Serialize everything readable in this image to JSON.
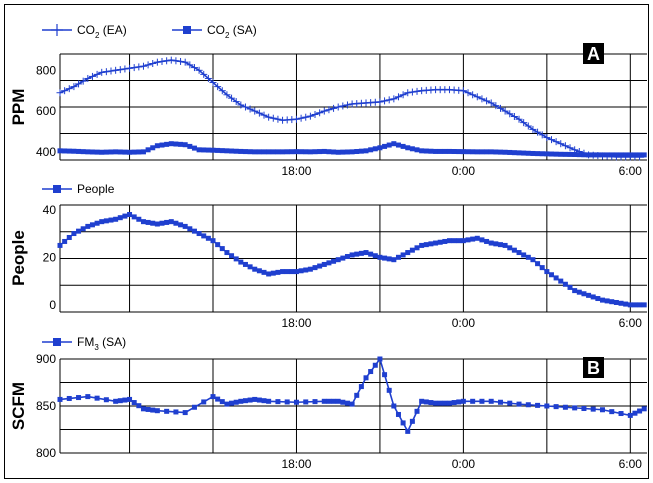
{
  "x_tick_labels": [
    "18:00",
    "0:00",
    "6:00"
  ],
  "chart_data": [
    {
      "type": "line",
      "panel_label": "A",
      "ylabel": "PPM",
      "ylim": [
        360,
        880
      ],
      "yticks": [
        400,
        600,
        800
      ],
      "x_unit": "hours",
      "xlim": [
        9.5,
        30.6
      ],
      "xticks": [
        18,
        24,
        30
      ],
      "series": [
        {
          "name": "CO2 (EA)",
          "legend_main": "CO",
          "legend_sub": "2",
          "legend_suffix": "(EA)",
          "color": "#1f3fcf",
          "marker": "plus",
          "x": [
            9.5,
            10,
            10.5,
            11,
            11.5,
            12,
            12.5,
            13,
            13.5,
            14,
            14.5,
            15,
            15.5,
            16,
            16.5,
            17,
            17.5,
            18,
            18.5,
            19,
            19.5,
            20,
            20.5,
            21,
            21.5,
            22,
            22.5,
            23,
            23.5,
            24,
            24.5,
            25,
            25.5,
            26,
            26.5,
            27,
            27.5,
            28,
            28.5,
            29,
            29.5,
            30,
            30.5
          ],
          "values": [
            690,
            720,
            760,
            790,
            800,
            810,
            820,
            840,
            850,
            840,
            800,
            740,
            680,
            630,
            600,
            570,
            555,
            560,
            575,
            600,
            620,
            635,
            640,
            645,
            660,
            690,
            700,
            705,
            705,
            700,
            670,
            640,
            600,
            560,
            510,
            470,
            440,
            410,
            385,
            380,
            375,
            375,
            375
          ]
        },
        {
          "name": "CO2 (SA)",
          "legend_main": "CO",
          "legend_sub": "2",
          "legend_suffix": "(SA)",
          "color": "#1f3fcf",
          "marker": "square",
          "x": [
            9.5,
            10,
            10.5,
            11,
            11.5,
            12,
            12.5,
            13,
            13.5,
            14,
            14.5,
            15,
            15.5,
            16,
            16.5,
            17,
            17.5,
            18,
            18.5,
            19,
            19.5,
            20,
            20.5,
            21,
            21.5,
            22,
            22.5,
            23,
            23.5,
            24,
            24.5,
            25,
            25.5,
            26,
            26.5,
            27,
            27.5,
            28,
            28.5,
            29,
            29.5,
            30,
            30.5
          ],
          "values": [
            405,
            403,
            400,
            398,
            400,
            398,
            400,
            430,
            440,
            435,
            410,
            408,
            405,
            402,
            400,
            400,
            400,
            401,
            400,
            402,
            398,
            400,
            405,
            420,
            440,
            420,
            405,
            402,
            402,
            401,
            400,
            400,
            398,
            395,
            392,
            390,
            388,
            387,
            385,
            385,
            385,
            385,
            385
          ]
        }
      ]
    },
    {
      "type": "line",
      "ylabel": "People",
      "ylim": [
        -3,
        42
      ],
      "yticks": [
        0,
        20,
        40
      ],
      "x_unit": "hours",
      "xlim": [
        9.5,
        30.6
      ],
      "xticks": [
        18,
        24,
        30
      ],
      "series": [
        {
          "name": "People",
          "legend_main": "People",
          "legend_sub": "",
          "legend_suffix": "",
          "color": "#1f3fcf",
          "marker": "square",
          "x": [
            9.5,
            10,
            10.5,
            11,
            11.5,
            12,
            12.5,
            13,
            13.5,
            14,
            14.5,
            15,
            15.5,
            16,
            16.5,
            17,
            17.5,
            18,
            18.5,
            19,
            19.5,
            20,
            20.5,
            21,
            21.5,
            22,
            22.5,
            23,
            23.5,
            24,
            24.5,
            25,
            25.5,
            26,
            26.5,
            27,
            27.5,
            28,
            28.5,
            29,
            29.5,
            30,
            30.5
          ],
          "values": [
            25,
            30,
            33,
            35,
            36,
            38,
            35,
            34,
            35,
            33,
            30,
            27,
            22,
            18,
            15,
            13,
            14,
            14,
            15,
            17,
            19,
            21,
            22,
            20,
            19,
            22,
            25,
            26,
            27,
            27,
            28,
            26,
            25,
            22,
            19,
            14,
            10,
            6,
            4,
            2,
            1,
            0,
            0
          ]
        }
      ]
    },
    {
      "type": "line",
      "panel_label": "B",
      "ylabel": "SCFM",
      "ylim": [
        800,
        900
      ],
      "yticks": [
        800,
        850,
        900
      ],
      "x_unit": "hours",
      "xlim": [
        9.5,
        30.6
      ],
      "xticks": [
        18,
        24,
        30
      ],
      "series": [
        {
          "name": "FM3 (SA)",
          "legend_main": "FM",
          "legend_sub": "3",
          "legend_suffix": "(SA)",
          "color": "#1f3fcf",
          "marker": "square",
          "x": [
            9.5,
            10.5,
            11.5,
            12,
            12.5,
            13,
            14,
            15,
            15.5,
            16,
            16.5,
            17,
            18,
            19,
            19.5,
            20,
            20.5,
            21,
            21.5,
            22,
            22.5,
            23,
            23.5,
            24,
            25,
            26,
            27,
            28,
            29,
            30,
            30.5
          ],
          "values": [
            857,
            860,
            855,
            857,
            847,
            845,
            843,
            860,
            852,
            855,
            857,
            855,
            854,
            855,
            855,
            852,
            880,
            900,
            850,
            823,
            855,
            853,
            853,
            855,
            855,
            852,
            850,
            848,
            846,
            840,
            847
          ]
        }
      ]
    }
  ]
}
